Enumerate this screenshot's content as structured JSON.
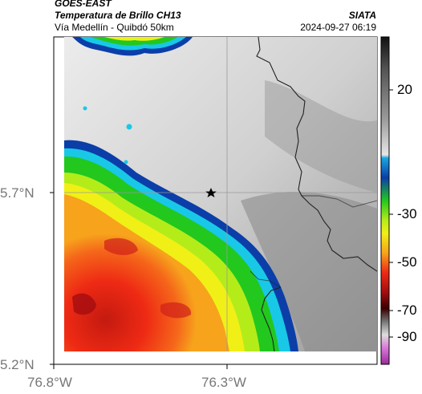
{
  "header": {
    "satellite": "GOES-EAST",
    "product": "Temperatura de Brillo CH13",
    "area": "Vía Medellín - Quibdó 50km",
    "organization": "SIATA",
    "timestamp": "2024-09-27 06:19"
  },
  "axes": {
    "y_ticks": [
      "5.7°N",
      "5.2°N"
    ],
    "x_ticks": [
      "76.8°W",
      "76.3°W"
    ]
  },
  "colorbar": {
    "ticks": [
      "20",
      "-30",
      "-50",
      "-70",
      "-90"
    ],
    "range": [
      -95,
      45
    ],
    "unit_hint": "brightness temperature"
  },
  "map": {
    "marker": "star-icon",
    "colors": {
      "warm_gray_light": "#e8e8e8",
      "cloud_blue": "#0b3ea8",
      "cloud_cyan": "#19c8e6",
      "cloud_green": "#22c81e",
      "cloud_yellow": "#f0f016",
      "cloud_orange": "#f7a31c",
      "cloud_red": "#ee2a14",
      "border": "#222222"
    }
  }
}
